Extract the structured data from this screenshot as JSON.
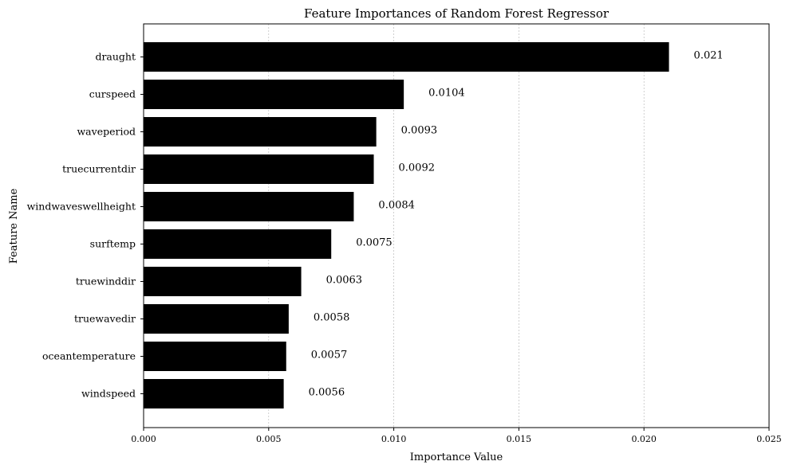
{
  "chart_data": {
    "type": "bar",
    "orientation": "horizontal",
    "title": "Feature Importances of Random Forest Regressor",
    "xlabel": "Importance Value",
    "ylabel": "Feature Name",
    "xlim": [
      0,
      0.025
    ],
    "xticks": [
      0.0,
      0.005,
      0.01,
      0.015,
      0.02,
      0.025
    ],
    "xtick_labels": [
      "0.000",
      "0.005",
      "0.010",
      "0.015",
      "0.020",
      "0.025"
    ],
    "grid": "x-dashed",
    "bar_color": "#000000",
    "categories": [
      "draught",
      "curspeed",
      "waveperiod",
      "truecurrentdir",
      "windwaveswellheight",
      "surftemp",
      "truewinddir",
      "truewavedir",
      "oceantemperature",
      "windspeed"
    ],
    "values": [
      0.021,
      0.0104,
      0.0093,
      0.0092,
      0.0084,
      0.0075,
      0.0063,
      0.0058,
      0.0057,
      0.0056
    ],
    "value_labels": [
      "0.021",
      "0.0104",
      "0.0093",
      "0.0092",
      "0.0084",
      "0.0075",
      "0.0063",
      "0.0058",
      "0.0057",
      "0.0056"
    ]
  }
}
